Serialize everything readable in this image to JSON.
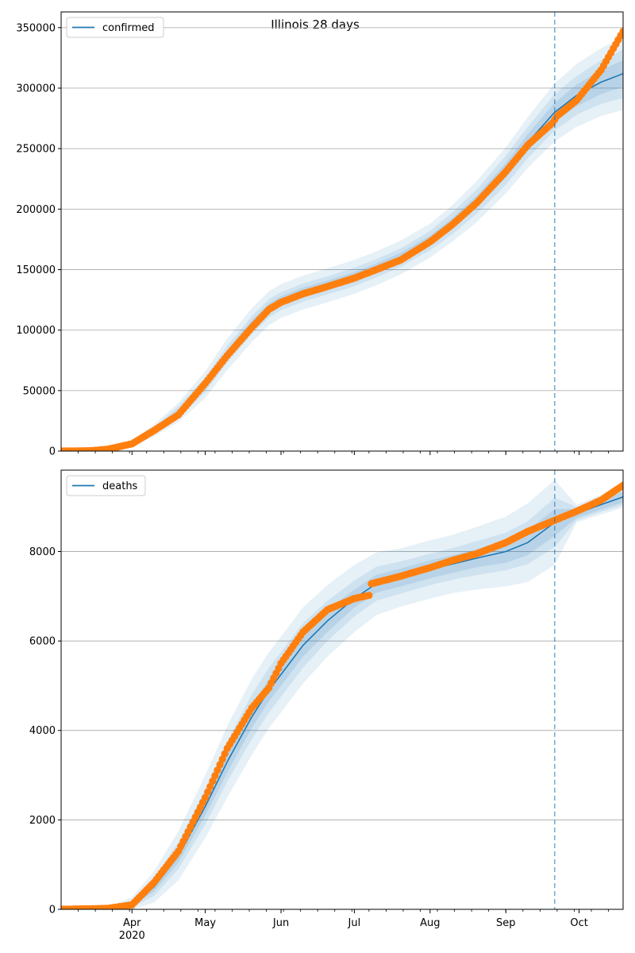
{
  "figure": {
    "title": "Illinois 28 days",
    "colors": {
      "model": "#1f77b4",
      "observed": "#ff7f0e",
      "band": "#1f77b4",
      "grid": "#b0b0b0",
      "forecast_line": "#1f77b4"
    }
  },
  "chart_data": [
    {
      "type": "line",
      "series_label": "confirmed",
      "legend": "top-left",
      "grid": "horizontal",
      "ylim": [
        0,
        363000
      ],
      "yticks": [
        0,
        50000,
        100000,
        150000,
        200000,
        250000,
        300000,
        350000
      ],
      "ytick_labels": [
        "0",
        "50000",
        "100000",
        "150000",
        "200000",
        "250000",
        "300000",
        "350000"
      ],
      "xlim": [
        "2020-03-03",
        "2020-10-19"
      ],
      "xticks": [
        {
          "date": "2020-04-01",
          "label": "Apr",
          "sublabel": "2020"
        },
        {
          "date": "2020-05-01",
          "label": "May"
        },
        {
          "date": "2020-06-01",
          "label": "Jun"
        },
        {
          "date": "2020-07-01",
          "label": "Jul"
        },
        {
          "date": "2020-08-01",
          "label": "Aug"
        },
        {
          "date": "2020-09-01",
          "label": "Sep"
        },
        {
          "date": "2020-10-01",
          "label": "Oct"
        }
      ],
      "forecast_start": "2020-09-21",
      "model": {
        "dates": [
          "2020-03-03",
          "2020-03-15",
          "2020-03-22",
          "2020-04-01",
          "2020-04-10",
          "2020-04-20",
          "2020-05-01",
          "2020-05-10",
          "2020-05-20",
          "2020-05-27",
          "2020-06-01",
          "2020-06-10",
          "2020-06-20",
          "2020-07-01",
          "2020-07-10",
          "2020-07-20",
          "2020-08-01",
          "2020-08-10",
          "2020-08-20",
          "2020-09-01",
          "2020-09-10",
          "2020-09-21",
          "2020-09-30",
          "2020-10-10",
          "2020-10-19"
        ],
        "values": [
          0,
          400,
          2000,
          6000,
          17000,
          32000,
          55000,
          80000,
          104000,
          118000,
          124000,
          131000,
          137000,
          144000,
          151000,
          160000,
          174000,
          188000,
          206000,
          232000,
          255000,
          280000,
          294000,
          305000,
          312000
        ],
        "band_inner": [
          0,
          100,
          300,
          800,
          1500,
          2500,
          3000,
          3500,
          4000,
          4000,
          4000,
          4000,
          4000,
          4000,
          4000,
          4000,
          4000,
          4500,
          5000,
          6000,
          7000,
          8000,
          9000,
          10000,
          11000
        ],
        "band_mid": [
          0,
          150,
          500,
          1500,
          3000,
          5000,
          6000,
          7000,
          7500,
          7500,
          7500,
          7500,
          7500,
          7500,
          7500,
          7500,
          8000,
          9000,
          10000,
          12000,
          13000,
          15000,
          16000,
          18000,
          20000
        ],
        "band_outer": [
          0,
          200,
          800,
          2500,
          5000,
          8000,
          11000,
          13000,
          14000,
          14000,
          14000,
          14000,
          14000,
          14000,
          14000,
          14000,
          14000,
          15000,
          17000,
          19000,
          21000,
          24000,
          26000,
          28000,
          30000
        ]
      },
      "observed": {
        "dates": [
          "2020-03-03",
          "2020-03-15",
          "2020-03-22",
          "2020-04-01",
          "2020-04-10",
          "2020-04-20",
          "2020-05-01",
          "2020-05-10",
          "2020-05-20",
          "2020-05-27",
          "2020-06-01",
          "2020-06-10",
          "2020-06-20",
          "2020-07-01",
          "2020-07-10",
          "2020-07-20",
          "2020-08-01",
          "2020-08-10",
          "2020-08-20",
          "2020-09-01",
          "2020-09-10",
          "2020-09-20",
          "2020-09-22",
          "2020-09-30",
          "2020-10-10",
          "2020-10-19"
        ],
        "values": [
          0,
          300,
          1500,
          6000,
          17000,
          30000,
          56000,
          79000,
          102000,
          117000,
          123000,
          130000,
          136000,
          143000,
          150000,
          158000,
          173000,
          187000,
          205000,
          231000,
          253000,
          271000,
          277000,
          290000,
          315000,
          347000
        ]
      }
    },
    {
      "type": "line",
      "series_label": "deaths",
      "legend": "top-left",
      "grid": "horizontal",
      "ylim": [
        0,
        9820
      ],
      "yticks": [
        0,
        2000,
        4000,
        6000,
        8000
      ],
      "ytick_labels": [
        "0",
        "2000",
        "4000",
        "6000",
        "8000"
      ],
      "xlim": [
        "2020-03-03",
        "2020-10-19"
      ],
      "xticks": [
        {
          "date": "2020-04-01",
          "label": "Apr",
          "sublabel": "2020"
        },
        {
          "date": "2020-05-01",
          "label": "May"
        },
        {
          "date": "2020-06-01",
          "label": "Jun"
        },
        {
          "date": "2020-07-01",
          "label": "Jul"
        },
        {
          "date": "2020-08-01",
          "label": "Aug"
        },
        {
          "date": "2020-09-01",
          "label": "Sep"
        },
        {
          "date": "2020-10-01",
          "label": "Oct"
        }
      ],
      "forecast_start": "2020-09-21",
      "model": {
        "dates": [
          "2020-03-03",
          "2020-03-22",
          "2020-04-01",
          "2020-04-10",
          "2020-04-20",
          "2020-05-01",
          "2020-05-10",
          "2020-05-20",
          "2020-05-27",
          "2020-06-01",
          "2020-06-10",
          "2020-06-20",
          "2020-07-01",
          "2020-07-10",
          "2020-07-20",
          "2020-08-01",
          "2020-08-10",
          "2020-08-20",
          "2020-09-01",
          "2020-09-10",
          "2020-09-21",
          "2020-09-30",
          "2020-10-10",
          "2020-10-19"
        ],
        "values": [
          0,
          20,
          120,
          500,
          1200,
          2300,
          3300,
          4300,
          4900,
          5250,
          5900,
          6450,
          6950,
          7280,
          7420,
          7600,
          7720,
          7850,
          8000,
          8200,
          8650,
          8850,
          9050,
          9220
        ],
        "band_inner": [
          0,
          10,
          40,
          100,
          150,
          200,
          250,
          250,
          250,
          250,
          250,
          250,
          200,
          200,
          200,
          200,
          200,
          200,
          250,
          280,
          300,
          100,
          110,
          120
        ],
        "band_mid": [
          0,
          20,
          80,
          200,
          300,
          400,
          450,
          500,
          500,
          500,
          500,
          450,
          400,
          380,
          360,
          350,
          350,
          380,
          420,
          480,
          550,
          150,
          160,
          180
        ],
        "band_outer": [
          0,
          30,
          150,
          350,
          550,
          700,
          800,
          850,
          850,
          850,
          850,
          800,
          750,
          700,
          650,
          650,
          650,
          700,
          780,
          880,
          950,
          200,
          220,
          240
        ]
      },
      "observed": {
        "dates": [
          "2020-03-03",
          "2020-03-22",
          "2020-04-01",
          "2020-04-10",
          "2020-04-20",
          "2020-05-01",
          "2020-05-10",
          "2020-05-20",
          "2020-05-27",
          "2020-06-01",
          "2020-06-10",
          "2020-06-20",
          "2020-07-01",
          "2020-07-07",
          "2020-07-08",
          "2020-07-20",
          "2020-08-01",
          "2020-08-10",
          "2020-08-20",
          "2020-09-01",
          "2020-09-10",
          "2020-09-21",
          "2020-09-30",
          "2020-10-10",
          "2020-10-19"
        ],
        "values": [
          0,
          20,
          100,
          600,
          1300,
          2500,
          3600,
          4500,
          4950,
          5500,
          6200,
          6700,
          6950,
          7020,
          7280,
          7450,
          7640,
          7800,
          7950,
          8200,
          8450,
          8700,
          8900,
          9150,
          9480
        ]
      }
    }
  ]
}
